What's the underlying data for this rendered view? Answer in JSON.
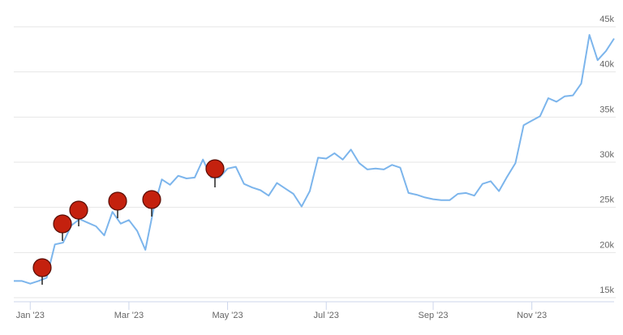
{
  "chart_data": {
    "type": "line",
    "categories": [
      null,
      null,
      "Jan '23",
      null,
      null,
      null,
      null,
      null,
      null,
      null,
      null,
      null,
      null,
      null,
      "Mar '23",
      null,
      null,
      null,
      null,
      null,
      null,
      null,
      null,
      null,
      null,
      null,
      "May '23",
      null,
      null,
      null,
      null,
      null,
      null,
      null,
      null,
      null,
      null,
      null,
      "Jul '23",
      null,
      null,
      null,
      null,
      null,
      null,
      null,
      null,
      null,
      null,
      null,
      null,
      "Sep '23",
      null,
      null,
      null,
      null,
      null,
      null,
      null,
      null,
      null,
      null,
      null,
      "Nov '23",
      null,
      null,
      null,
      null,
      null,
      null,
      null,
      null,
      null,
      null
    ],
    "values": [
      16850,
      16850,
      16550,
      16850,
      17200,
      20900,
      21100,
      23000,
      23700,
      23300,
      22900,
      21900,
      24500,
      23200,
      23600,
      22400,
      20300,
      24800,
      28100,
      27500,
      28500,
      28200,
      28300,
      30300,
      28300,
      28300,
      29300,
      29500,
      27600,
      27200,
      26900,
      26300,
      27700,
      27100,
      26500,
      25100,
      26800,
      30500,
      30400,
      31000,
      30300,
      31400,
      29900,
      29200,
      29300,
      29200,
      29700,
      29400,
      26600,
      26400,
      26100,
      25900,
      25800,
      25800,
      26500,
      26600,
      26300,
      27600,
      27900,
      26800,
      28400,
      29900,
      34100,
      34600,
      35100,
      37100,
      36700,
      37300,
      37400,
      38700,
      44100,
      41300,
      42300,
      43700
    ],
    "color": "#7cb5ec",
    "ylim": [
      15000,
      45000
    ],
    "yticks": [
      {
        "value": 15000,
        "label": "15k"
      },
      {
        "value": 20000,
        "label": "20k"
      },
      {
        "value": 25000,
        "label": "25k"
      },
      {
        "value": 30000,
        "label": "30k"
      },
      {
        "value": 35000,
        "label": "35k"
      },
      {
        "value": 40000,
        "label": "40k"
      },
      {
        "value": 45000,
        "label": "45k"
      }
    ],
    "grid": true
  }
}
